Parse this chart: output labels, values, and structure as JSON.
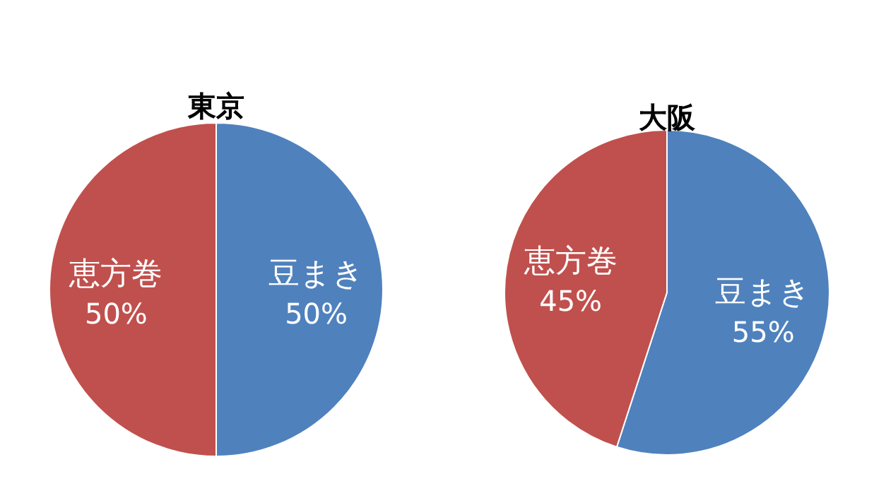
{
  "chart_data": [
    {
      "type": "pie",
      "title": "東京",
      "categories": [
        "豆まき",
        "恵方巻"
      ],
      "values": [
        50,
        50
      ],
      "colors": [
        "#4f81bd",
        "#c0504d"
      ],
      "value_labels": [
        "50%",
        "50%"
      ]
    },
    {
      "type": "pie",
      "title": "大阪",
      "categories": [
        "豆まき",
        "恵方巻"
      ],
      "values": [
        55,
        45
      ],
      "colors": [
        "#4f81bd",
        "#c0504d"
      ],
      "value_labels": [
        "55%",
        "45%"
      ]
    }
  ]
}
